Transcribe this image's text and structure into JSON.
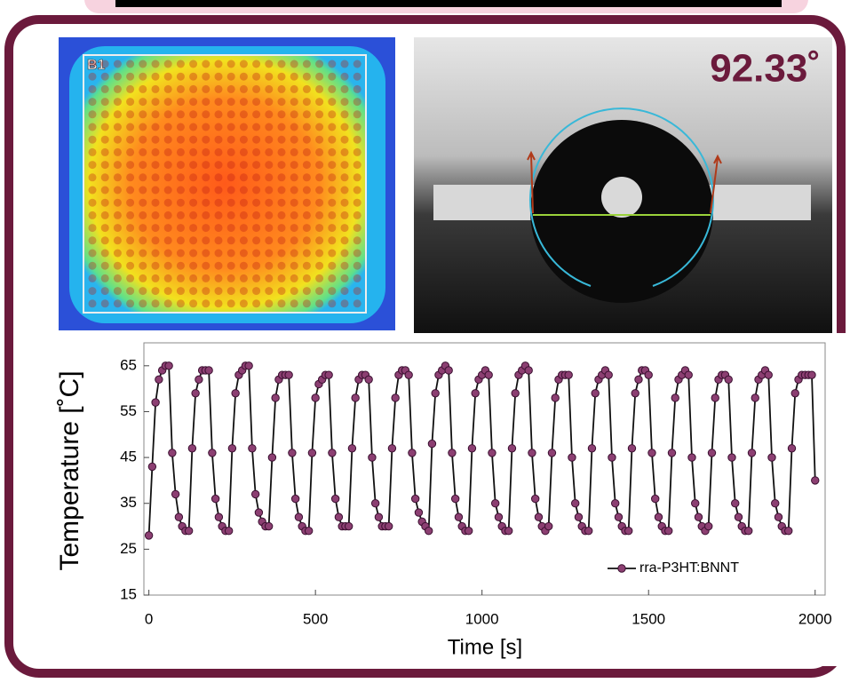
{
  "thermal_image": {
    "label": "B1"
  },
  "contact_angle_image": {
    "label": "92.33˚"
  },
  "chart_data": {
    "type": "line",
    "xlabel": "Time [s]",
    "ylabel": "Temperature [˚C]",
    "x": [
      0,
      10,
      20,
      30,
      40,
      50,
      60,
      70,
      80,
      90,
      100,
      110,
      120,
      130,
      140,
      150,
      160,
      170,
      180,
      190,
      200,
      210,
      220,
      230,
      240,
      250,
      260,
      270,
      280,
      290,
      300,
      310,
      320,
      330,
      340,
      350,
      360,
      370,
      380,
      390,
      400,
      410,
      420,
      430,
      440,
      450,
      460,
      470,
      480,
      490,
      500,
      510,
      520,
      530,
      540,
      550,
      560,
      570,
      580,
      590,
      600,
      610,
      620,
      630,
      640,
      650,
      660,
      670,
      680,
      690,
      700,
      710,
      720,
      730,
      740,
      750,
      760,
      770,
      780,
      790,
      800,
      810,
      820,
      830,
      840,
      850,
      860,
      870,
      880,
      890,
      900,
      910,
      920,
      930,
      940,
      950,
      960,
      970,
      980,
      990,
      1000,
      1010,
      1020,
      1030,
      1040,
      1050,
      1060,
      1070,
      1080,
      1090,
      1100,
      1110,
      1120,
      1130,
      1140,
      1150,
      1160,
      1170,
      1180,
      1190,
      1200,
      1210,
      1220,
      1230,
      1240,
      1250,
      1260,
      1270,
      1280,
      1290,
      1300,
      1310,
      1320,
      1330,
      1340,
      1350,
      1360,
      1370,
      1380,
      1390,
      1400,
      1410,
      1420,
      1430,
      1440,
      1450,
      1460,
      1470,
      1480,
      1490,
      1500,
      1510,
      1520,
      1530,
      1540,
      1550,
      1560,
      1570,
      1580,
      1590,
      1600,
      1610,
      1620,
      1630,
      1640,
      1650,
      1660,
      1670,
      1680,
      1690,
      1700,
      1710,
      1720,
      1730,
      1740,
      1750,
      1760,
      1770,
      1780,
      1790,
      1800,
      1810,
      1820,
      1830,
      1840,
      1850,
      1860,
      1870,
      1880,
      1890,
      1900,
      1910,
      1920,
      1930,
      1940,
      1950,
      1960,
      1970,
      1980,
      1990,
      2000
    ],
    "series": [
      {
        "name": "rra-P3HT:BNNT",
        "color": "#8c3f72",
        "line_color": "#111111",
        "values": [
          28,
          43,
          57,
          62,
          64,
          65,
          65,
          46,
          37,
          32,
          30,
          29,
          29,
          47,
          59,
          62,
          64,
          64,
          64,
          46,
          36,
          32,
          30,
          29,
          29,
          47,
          59,
          63,
          64,
          65,
          65,
          47,
          37,
          33,
          31,
          30,
          30,
          45,
          58,
          62,
          63,
          63,
          63,
          46,
          36,
          32,
          30,
          29,
          29,
          46,
          58,
          61,
          62,
          63,
          63,
          46,
          36,
          32,
          30,
          30,
          30,
          47,
          58,
          62,
          63,
          63,
          62,
          45,
          35,
          32,
          30,
          30,
          30,
          47,
          58,
          63,
          64,
          64,
          63,
          46,
          36,
          33,
          31,
          30,
          29,
          48,
          59,
          63,
          64,
          65,
          64,
          46,
          36,
          32,
          30,
          29,
          29,
          47,
          59,
          62,
          63,
          64,
          63,
          46,
          35,
          32,
          30,
          29,
          29,
          47,
          59,
          63,
          64,
          65,
          64,
          46,
          36,
          32,
          30,
          29,
          30,
          46,
          58,
          62,
          63,
          63,
          63,
          45,
          35,
          32,
          30,
          29,
          29,
          47,
          59,
          62,
          63,
          64,
          63,
          45,
          35,
          32,
          30,
          29,
          29,
          47,
          59,
          62,
          64,
          64,
          63,
          46,
          36,
          32,
          30,
          29,
          29,
          46,
          58,
          62,
          63,
          64,
          63,
          45,
          35,
          32,
          30,
          29,
          30,
          46,
          58,
          62,
          63,
          63,
          62,
          45,
          35,
          32,
          30,
          29,
          29,
          46,
          58,
          62,
          63,
          64,
          63,
          45,
          35,
          32,
          30,
          29,
          29,
          47,
          59,
          62,
          63,
          63,
          63,
          63,
          40
        ]
      }
    ],
    "xlim": [
      -15,
      2030
    ],
    "ylim": [
      15,
      70
    ],
    "xticks": [
      0,
      500,
      1000,
      1500,
      2000
    ],
    "yticks": [
      15,
      25,
      35,
      45,
      55,
      65
    ],
    "legend": "lower right"
  }
}
